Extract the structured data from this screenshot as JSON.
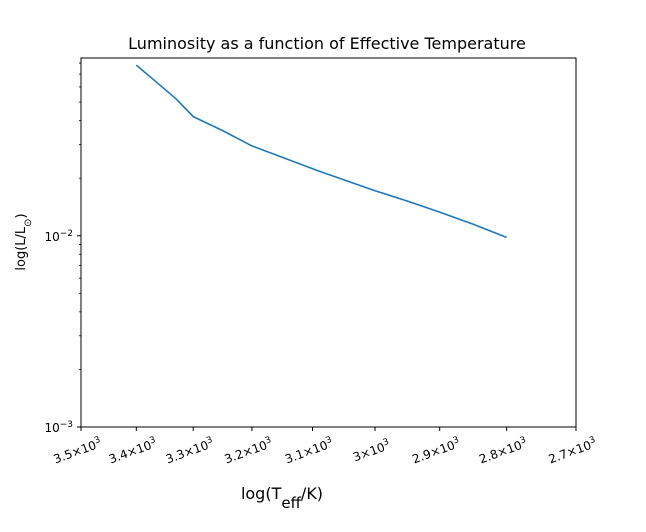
{
  "chart_data": {
    "type": "line",
    "title": "Luminosity as a function of Effective Temperature",
    "xlabel": {
      "main": "log(T",
      "sub": "eff",
      "tail": "/K)"
    },
    "ylabel": {
      "main": "log(L/L",
      "sub": "⊙",
      "tail": ")"
    },
    "xscale": "log",
    "yscale": "log",
    "x_inverted": true,
    "xlim": [
      3500,
      2700
    ],
    "ylim": [
      0.001,
      0.085
    ],
    "grid": false,
    "x_ticks": [
      {
        "value": 3500,
        "coef": "3.5",
        "exp": "3"
      },
      {
        "value": 3400,
        "coef": "3.4",
        "exp": "3"
      },
      {
        "value": 3300,
        "coef": "3.3",
        "exp": "3"
      },
      {
        "value": 3200,
        "coef": "3.2",
        "exp": "3"
      },
      {
        "value": 3100,
        "coef": "3.1",
        "exp": "3"
      },
      {
        "value": 3000,
        "coef": "3",
        "exp": "3"
      },
      {
        "value": 2900,
        "coef": "2.9",
        "exp": "3"
      },
      {
        "value": 2800,
        "coef": "2.8",
        "exp": "3"
      },
      {
        "value": 2700,
        "coef": "2.7",
        "exp": "3"
      }
    ],
    "y_ticks": [
      {
        "value": 0.001,
        "base": "10",
        "exp": "−3"
      },
      {
        "value": 0.01,
        "base": "10",
        "exp": "−2"
      }
    ],
    "series": [
      {
        "color": "#1f77b4",
        "x": [
          3400,
          3360,
          3330,
          3300,
          3250,
          3200,
          3090,
          3000,
          2950,
          2900,
          2850,
          2800
        ],
        "y": [
          0.078,
          0.062,
          0.052,
          0.042,
          0.0355,
          0.0295,
          0.0218,
          0.0172,
          0.0152,
          0.0133,
          0.0115,
          0.0098
        ]
      }
    ]
  }
}
